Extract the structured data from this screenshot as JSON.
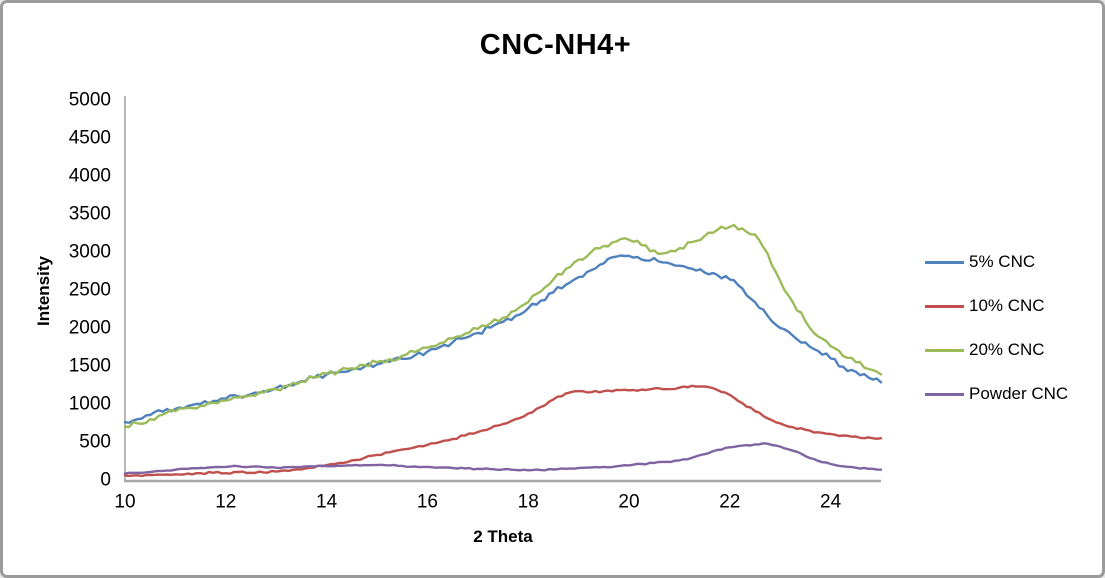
{
  "window": {
    "background": "#ffffff",
    "border_color": "#9b9b9b"
  },
  "chart_data": {
    "type": "line",
    "title": "CNC-NH4+",
    "xlabel": "2 Theta",
    "ylabel": "Intensity",
    "xlim": [
      10,
      25
    ],
    "ylim": [
      0,
      5000
    ],
    "x_ticks": [
      10,
      12,
      14,
      16,
      18,
      20,
      22,
      24
    ],
    "y_ticks": [
      0,
      500,
      1000,
      1500,
      2000,
      2500,
      3000,
      3500,
      4000,
      4500,
      5000
    ],
    "grid": false,
    "legend_position": "right",
    "axis_color": "#a6a6a6",
    "text_color": "#000000",
    "x_start": 10,
    "x_step": 0.25,
    "series": [
      {
        "name": "5% CNC",
        "color": "#4F81BD",
        "noise": 35,
        "values": [
          760,
          800,
          855,
          900,
          935,
          975,
          1000,
          1040,
          1070,
          1100,
          1130,
          1170,
          1210,
          1250,
          1300,
          1345,
          1390,
          1420,
          1455,
          1490,
          1520,
          1555,
          1595,
          1640,
          1690,
          1750,
          1810,
          1870,
          1935,
          2005,
          2080,
          2160,
          2260,
          2360,
          2470,
          2570,
          2670,
          2760,
          2850,
          2940,
          2950,
          2900,
          2920,
          2860,
          2820,
          2780,
          2730,
          2700,
          2640,
          2520,
          2340,
          2160,
          2000,
          1900,
          1810,
          1700,
          1600,
          1490,
          1425,
          1350,
          1285
        ]
      },
      {
        "name": "10% CNC",
        "color": "#C0504D",
        "noise": 14,
        "values": [
          60,
          62,
          66,
          70,
          75,
          85,
          90,
          95,
          90,
          105,
          95,
          100,
          110,
          120,
          140,
          165,
          195,
          225,
          258,
          292,
          330,
          365,
          400,
          430,
          462,
          500,
          540,
          585,
          632,
          680,
          735,
          800,
          875,
          960,
          1060,
          1140,
          1170,
          1155,
          1170,
          1185,
          1180,
          1190,
          1205,
          1195,
          1215,
          1240,
          1230,
          1185,
          1120,
          1010,
          905,
          810,
          745,
          695,
          660,
          628,
          605,
          585,
          572,
          560,
          550
        ]
      },
      {
        "name": "20% CNC",
        "color": "#9BBB59",
        "noise": 35,
        "values": [
          700,
          745,
          800,
          860,
          905,
          950,
          975,
          1015,
          1045,
          1085,
          1115,
          1150,
          1195,
          1240,
          1295,
          1350,
          1400,
          1435,
          1470,
          1510,
          1550,
          1590,
          1635,
          1685,
          1740,
          1800,
          1865,
          1925,
          1990,
          2060,
          2135,
          2230,
          2340,
          2480,
          2640,
          2780,
          2900,
          3000,
          3080,
          3140,
          3160,
          3090,
          3020,
          2990,
          3050,
          3130,
          3210,
          3290,
          3330,
          3310,
          3230,
          2980,
          2620,
          2340,
          2090,
          1890,
          1760,
          1630,
          1550,
          1460,
          1390
        ]
      },
      {
        "name": "Powder CNC",
        "color": "#8064A2",
        "noise": 9,
        "values": [
          85,
          95,
          105,
          120,
          135,
          148,
          158,
          168,
          172,
          182,
          175,
          168,
          162,
          168,
          172,
          178,
          182,
          188,
          192,
          196,
          198,
          192,
          185,
          178,
          172,
          165,
          158,
          152,
          148,
          143,
          140,
          133,
          127,
          130,
          138,
          148,
          158,
          165,
          172,
          180,
          192,
          210,
          225,
          240,
          258,
          292,
          340,
          395,
          430,
          452,
          468,
          478,
          440,
          385,
          315,
          252,
          210,
          180,
          162,
          148,
          135
        ]
      }
    ]
  }
}
